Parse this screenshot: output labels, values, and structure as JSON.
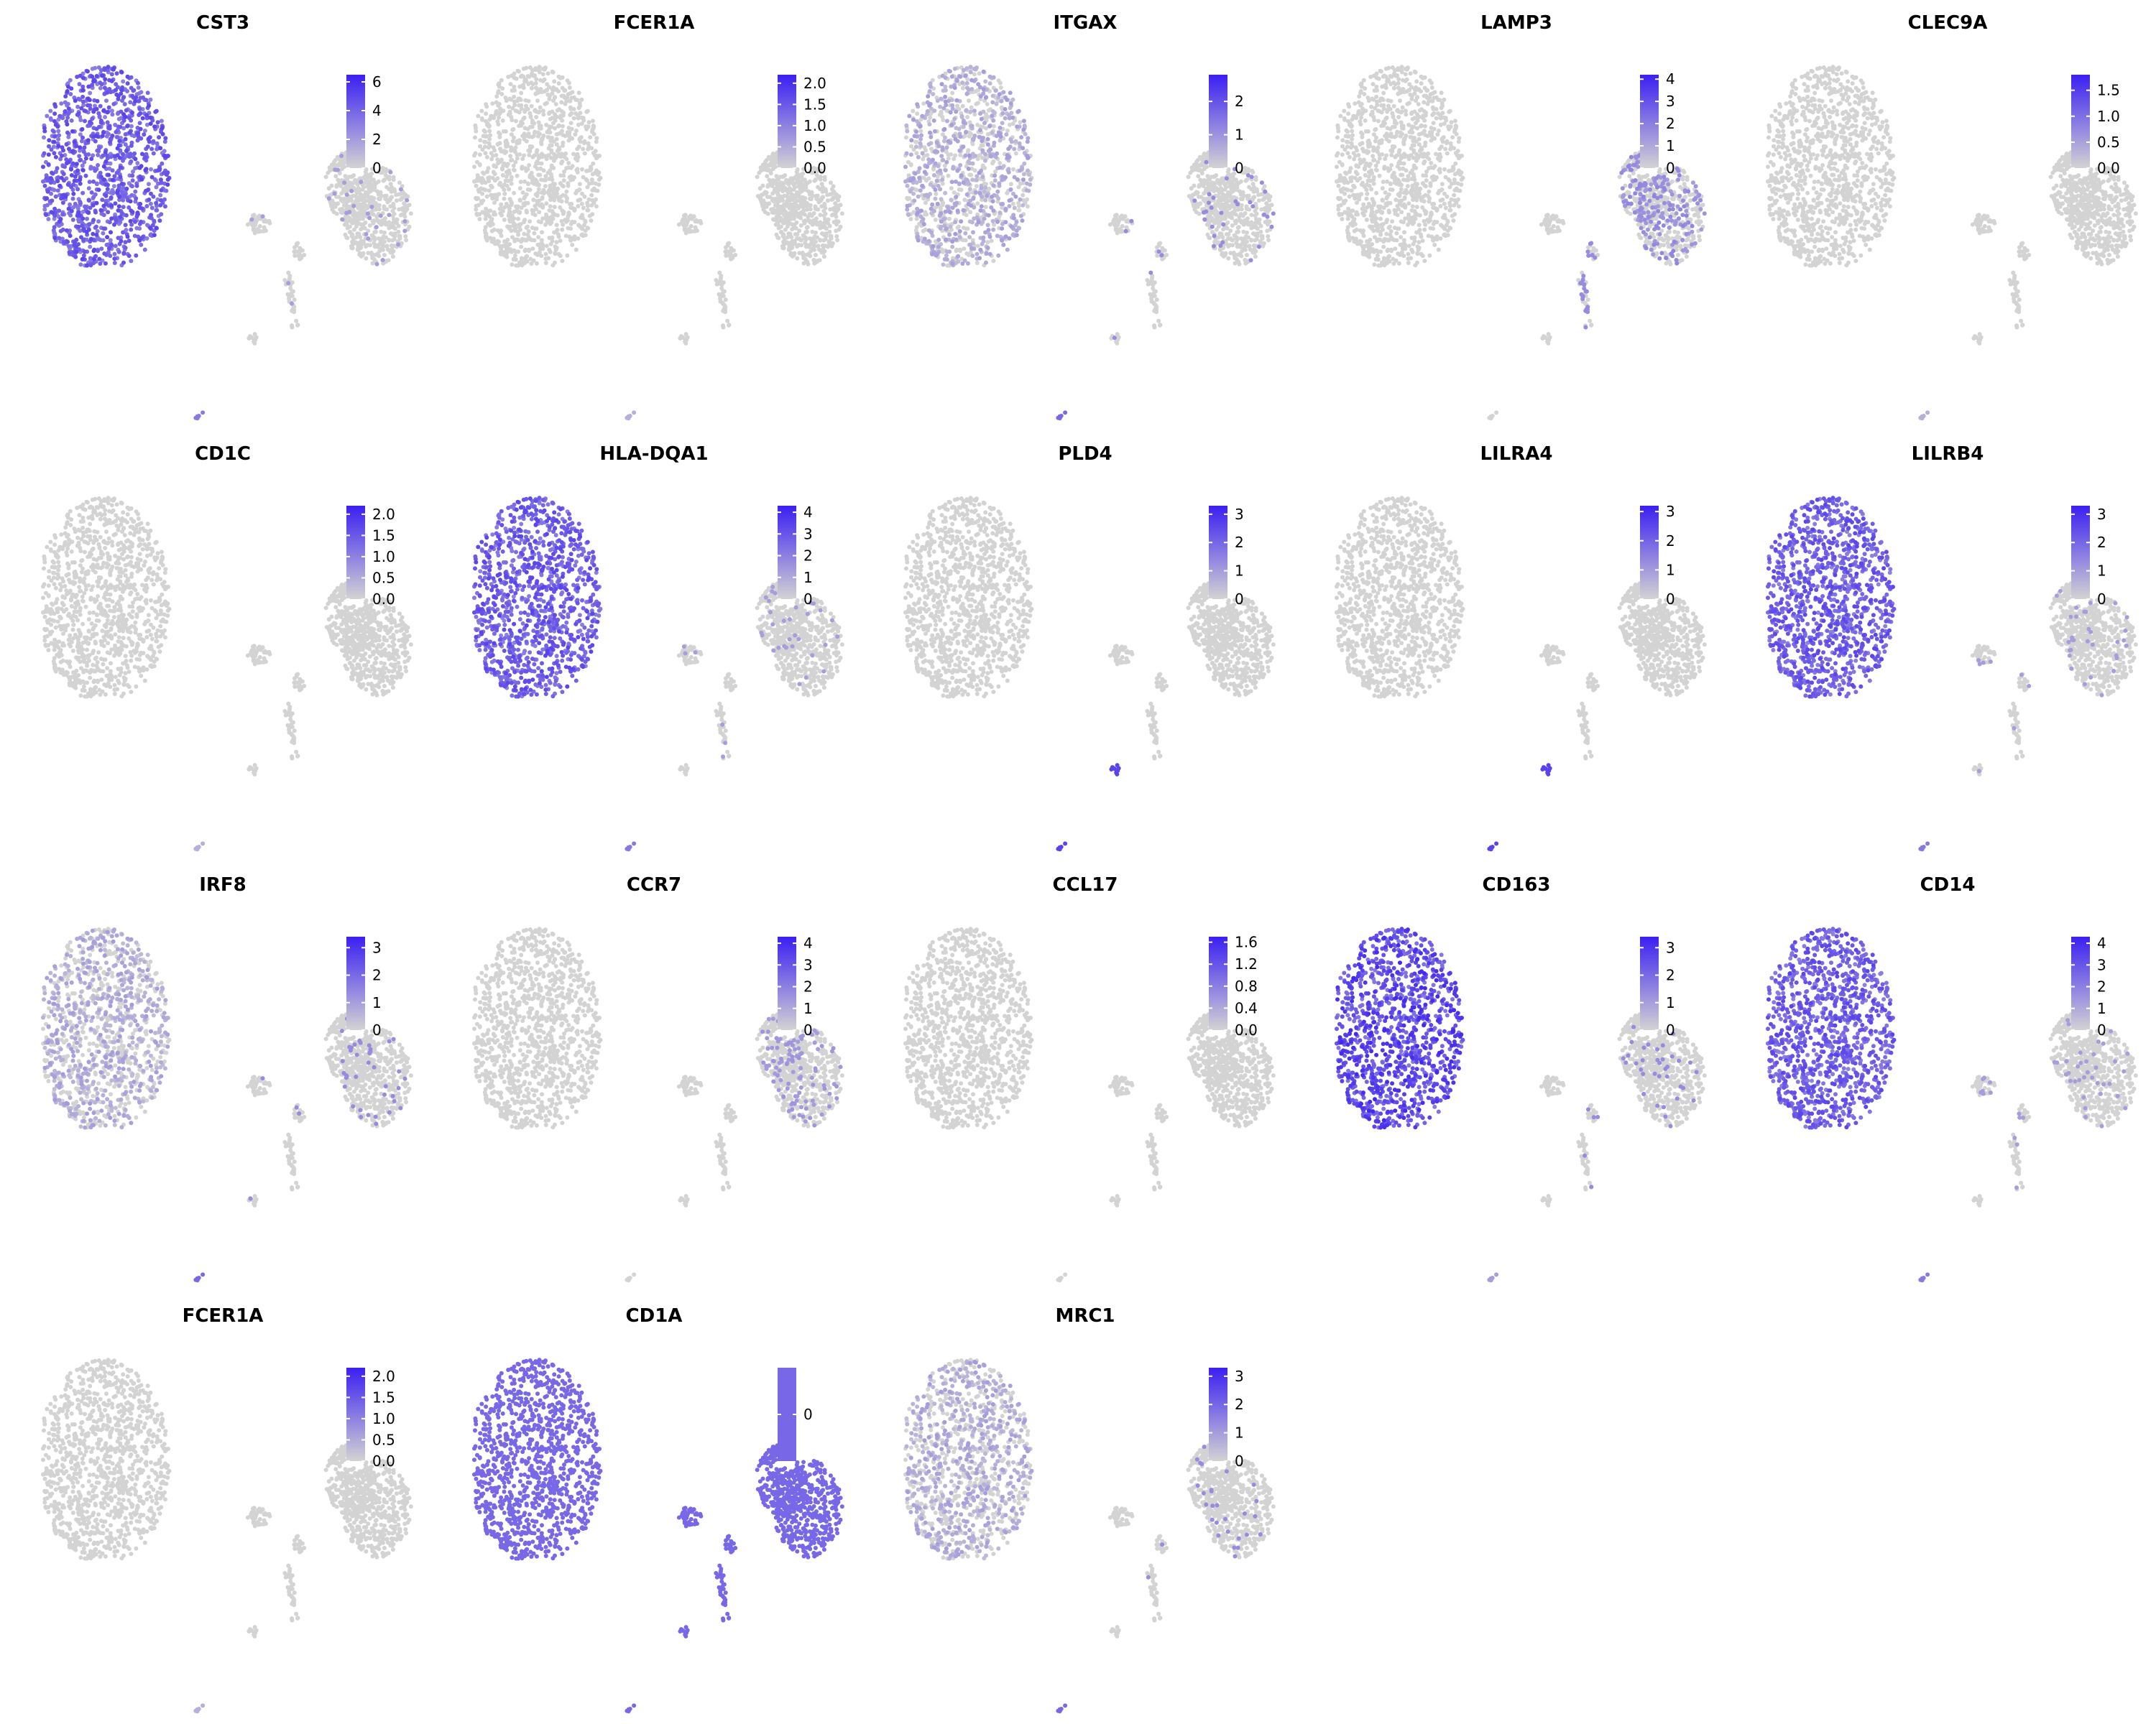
{
  "chart_data": {
    "type": "scatter",
    "layout": {
      "rows": 4,
      "cols": 5
    },
    "color_low": "#d3d3d3",
    "color_high": "#3b1ff2",
    "panels": [
      {
        "title": "CST3",
        "legend_ticks": [
          "6",
          "4",
          "2",
          "0"
        ],
        "max": 6.5,
        "pattern": "mono"
      },
      {
        "title": "FCER1A",
        "legend_ticks": [
          "2.0",
          "1.5",
          "1.0",
          "0.5",
          "0.0"
        ],
        "max": 2.2,
        "pattern": "rare"
      },
      {
        "title": "ITGAX",
        "legend_ticks": [
          "2",
          "1",
          "0"
        ],
        "max": 2.8,
        "pattern": "weak_mono"
      },
      {
        "title": "LAMP3",
        "legend_ticks": [
          "4",
          "3",
          "2",
          "1",
          "0"
        ],
        "max": 4.2,
        "pattern": "lamp"
      },
      {
        "title": "CLEC9A",
        "legend_ticks": [
          "1.5",
          "1.0",
          "0.5",
          "0.0"
        ],
        "max": 1.8,
        "pattern": "rare"
      },
      {
        "title": "CD1C",
        "legend_ticks": [
          "2.0",
          "1.5",
          "1.0",
          "0.5",
          "0.0"
        ],
        "max": 2.2,
        "pattern": "rare"
      },
      {
        "title": "HLA-DQA1",
        "legend_ticks": [
          "4",
          "3",
          "2",
          "1",
          "0"
        ],
        "max": 4.3,
        "pattern": "mono"
      },
      {
        "title": "PLD4",
        "legend_ticks": [
          "3",
          "2",
          "1",
          "0"
        ],
        "max": 3.3,
        "pattern": "pdc"
      },
      {
        "title": "LILRA4",
        "legend_ticks": [
          "3",
          "2",
          "1",
          "0"
        ],
        "max": 3.2,
        "pattern": "pdc"
      },
      {
        "title": "LILRB4",
        "legend_ticks": [
          "3",
          "2",
          "1",
          "0"
        ],
        "max": 3.3,
        "pattern": "mono"
      },
      {
        "title": "IRF8",
        "legend_ticks": [
          "3",
          "2",
          "1",
          "0"
        ],
        "max": 3.4,
        "pattern": "weak_mono"
      },
      {
        "title": "CCR7",
        "legend_ticks": [
          "4",
          "3",
          "2",
          "1",
          "0"
        ],
        "max": 4.3,
        "pattern": "ccr7"
      },
      {
        "title": "CCL17",
        "legend_ticks": [
          "1.6",
          "1.2",
          "0.8",
          "0.4",
          "0.0"
        ],
        "max": 1.7,
        "pattern": "none"
      },
      {
        "title": "CD163",
        "legend_ticks": [
          "3",
          "2",
          "1",
          "0"
        ],
        "max": 3.4,
        "pattern": "strong_mono"
      },
      {
        "title": "CD14",
        "legend_ticks": [
          "4",
          "3",
          "2",
          "1",
          "0"
        ],
        "max": 4.3,
        "pattern": "mono"
      },
      {
        "title": "FCER1A",
        "legend_ticks": [
          "2.0",
          "1.5",
          "1.0",
          "0.5",
          "0.0"
        ],
        "max": 2.2,
        "pattern": "rare"
      },
      {
        "title": "CD1A",
        "legend_ticks": [
          "0"
        ],
        "max": 0,
        "pattern": "uniform"
      },
      {
        "title": "MRC1",
        "legend_ticks": [
          "3",
          "2",
          "1",
          "0"
        ],
        "max": 3.3,
        "pattern": "weak_mono"
      }
    ]
  }
}
